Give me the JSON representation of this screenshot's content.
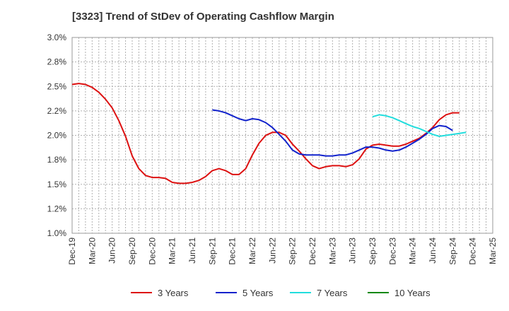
{
  "chart_data": {
    "type": "line",
    "title": "[3323]  Trend of StDev of Operating Cashflow Margin",
    "xlabel": "",
    "ylabel": "",
    "ylim": [
      1.0,
      3.0
    ],
    "y_ticks": [
      "1.0%",
      "1.2%",
      "1.5%",
      "1.8%",
      "2.0%",
      "2.2%",
      "2.5%",
      "2.8%",
      "3.0%"
    ],
    "x_ticks": [
      "Dec-19",
      "Mar-20",
      "Jun-20",
      "Sep-20",
      "Dec-20",
      "Mar-21",
      "Jun-21",
      "Sep-21",
      "Dec-21",
      "Mar-22",
      "Jun-22",
      "Sep-22",
      "Dec-22",
      "Mar-23",
      "Jun-23",
      "Sep-23",
      "Dec-23",
      "Mar-24",
      "Jun-24",
      "Sep-24",
      "Dec-24",
      "Mar-25"
    ],
    "x_unit": "months since Dec-19 (monthly points)",
    "grid": true,
    "legend_position": "bottom",
    "series": [
      {
        "name": "3 Years",
        "color": "#dd1111",
        "start_index": 0,
        "values": [
          2.52,
          2.53,
          2.52,
          2.49,
          2.44,
          2.37,
          2.28,
          2.15,
          1.99,
          1.79,
          1.66,
          1.59,
          1.57,
          1.57,
          1.56,
          1.52,
          1.51,
          1.51,
          1.52,
          1.54,
          1.58,
          1.64,
          1.66,
          1.64,
          1.6,
          1.6,
          1.66,
          1.8,
          1.92,
          2.0,
          2.03,
          2.03,
          2.0,
          1.91,
          1.84,
          1.76,
          1.69,
          1.66,
          1.68,
          1.69,
          1.69,
          1.68,
          1.7,
          1.76,
          1.86,
          1.9,
          1.91,
          1.9,
          1.89,
          1.89,
          1.91,
          1.94,
          1.97,
          2.02,
          2.08,
          2.16,
          2.21,
          2.23,
          2.23
        ]
      },
      {
        "name": "5 Years",
        "color": "#1122cc",
        "start_index": 21,
        "values": [
          2.26,
          2.25,
          2.23,
          2.2,
          2.17,
          2.15,
          2.17,
          2.16,
          2.13,
          2.08,
          2.01,
          1.94,
          1.85,
          1.81,
          1.8,
          1.8,
          1.8,
          1.79,
          1.79,
          1.8,
          1.8,
          1.82,
          1.85,
          1.88,
          1.88,
          1.87,
          1.85,
          1.84,
          1.85,
          1.88,
          1.92,
          1.96,
          2.01,
          2.07,
          2.1,
          2.09,
          2.05
        ]
      },
      {
        "name": "7 Years",
        "color": "#22dddd",
        "start_index": 45,
        "values": [
          2.19,
          2.21,
          2.2,
          2.18,
          2.15,
          2.12,
          2.09,
          2.07,
          2.04,
          2.01,
          1.99,
          2.0,
          2.01,
          2.02,
          2.03
        ]
      },
      {
        "name": "10 Years",
        "color": "#118811",
        "start_index": 0,
        "values": []
      }
    ]
  }
}
